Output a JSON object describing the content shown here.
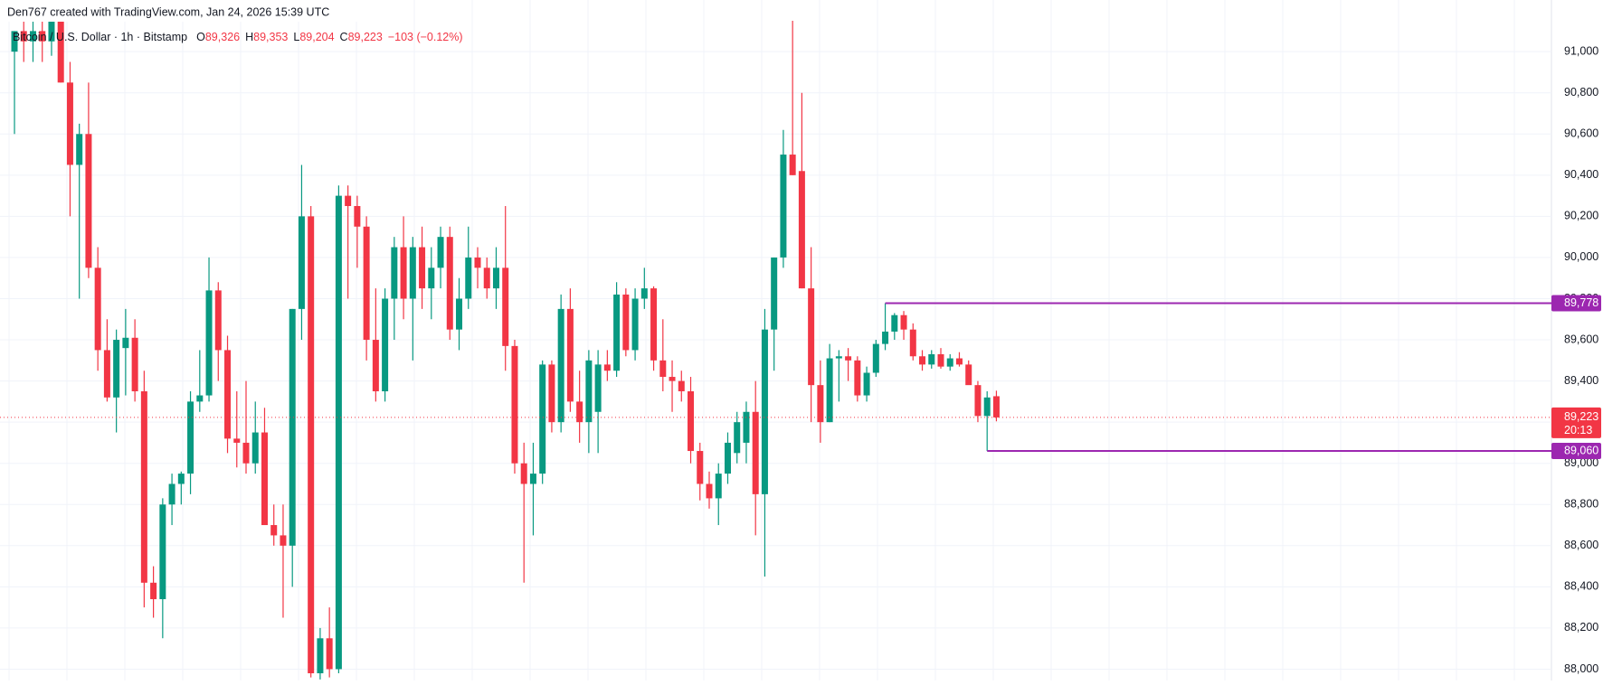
{
  "header": "Den767 created with TradingView.com, Jan 24, 2026 15:39 UTC",
  "legend": {
    "symbol": "Bitcoin / U.S. Dollar · 1h · Bitstamp",
    "items": [
      {
        "key": "O",
        "value": "89,326"
      },
      {
        "key": "H",
        "value": "89,353"
      },
      {
        "key": "L",
        "value": "89,204"
      },
      {
        "key": "C",
        "value": "89,223"
      }
    ],
    "change": "−103 (−0.12%)"
  },
  "chart_data": {
    "type": "candlestick",
    "up_color": "#089981",
    "down_color": "#f23645",
    "level_color": "#9c27b0",
    "grid": true,
    "ylim": [
      87945,
      91251
    ],
    "yticks": [
      {
        "value": 88000,
        "label": "88,000"
      },
      {
        "value": 88200,
        "label": "88,200"
      },
      {
        "value": 88400,
        "label": "88,400"
      },
      {
        "value": 88600,
        "label": "88,600"
      },
      {
        "value": 88800,
        "label": "88,800"
      },
      {
        "value": 89000,
        "label": "89,000"
      },
      {
        "value": 89200,
        "label": "89,200"
      },
      {
        "value": 89400,
        "label": "89,400"
      },
      {
        "value": 89600,
        "label": "89,600"
      },
      {
        "value": 89800,
        "label": "89,800"
      },
      {
        "value": 90000,
        "label": "90,000"
      },
      {
        "value": 90200,
        "label": "90,200"
      },
      {
        "value": 90400,
        "label": "90,400"
      },
      {
        "value": 90600,
        "label": "90,600"
      },
      {
        "value": 90800,
        "label": "90,800"
      },
      {
        "value": 91000,
        "label": "91,000"
      }
    ],
    "open": [
      91000,
      91100,
      91050,
      91100,
      91050,
      91150,
      90850,
      90450,
      90600,
      89950,
      89550,
      89320,
      89560,
      89610,
      89350,
      88420,
      88340,
      88800,
      88900,
      88950,
      89300,
      89330,
      89840,
      89550,
      89120,
      89100,
      89000,
      89150,
      88700,
      88650,
      88600,
      89750,
      90200,
      87980,
      88150,
      88000,
      90300,
      90250,
      90150,
      89600,
      89350,
      89800,
      90050,
      89800,
      90050,
      89850,
      89950,
      90100,
      89650,
      89800,
      90000,
      89950,
      89850,
      89950,
      89570,
      89000,
      88900,
      88950,
      89480,
      89200,
      89750,
      89300,
      89200,
      89250,
      89480,
      89450,
      89820,
      89550,
      89800,
      89850,
      89500,
      89420,
      89400,
      89350,
      89060,
      88900,
      88830,
      88950,
      89050,
      89100,
      89250,
      88850,
      89650,
      90000,
      90500,
      90420,
      89850,
      89380,
      89200,
      89510,
      89520,
      89500,
      89330,
      89440,
      89580,
      89640,
      89720,
      89650,
      89520,
      89480,
      89530,
      89470,
      89510,
      89480,
      89380,
      89230,
      89326
    ],
    "high": [
      91100,
      91200,
      91150,
      91250,
      91200,
      91250,
      90950,
      90650,
      90850,
      90050,
      89700,
      89650,
      89750,
      89700,
      89450,
      88500,
      88830,
      88950,
      88960,
      89350,
      89550,
      90000,
      89880,
      89620,
      89350,
      89400,
      89300,
      89270,
      88800,
      88800,
      89750,
      90450,
      90250,
      88200,
      88300,
      90350,
      90350,
      90300,
      90200,
      89850,
      89850,
      90100,
      90200,
      90100,
      90150,
      90050,
      90150,
      90150,
      89900,
      90150,
      90050,
      90000,
      90050,
      90250,
      89600,
      89100,
      89100,
      89500,
      89500,
      89820,
      89850,
      89450,
      89550,
      89550,
      89550,
      89880,
      89850,
      89850,
      89950,
      89860,
      89700,
      89500,
      89450,
      89420,
      89100,
      88960,
      89000,
      89150,
      89250,
      89300,
      89400,
      89750,
      90000,
      90620,
      91150,
      90800,
      90050,
      89500,
      89580,
      89550,
      89560,
      89520,
      89470,
      89600,
      89778,
      89730,
      89740,
      89680,
      89550,
      89550,
      89560,
      89530,
      89540,
      89500,
      89400,
      89350,
      89353
    ],
    "low": [
      90600,
      90950,
      90950,
      90950,
      90980,
      90850,
      90200,
      89800,
      89900,
      89450,
      89300,
      89150,
      89330,
      89300,
      88300,
      88250,
      88150,
      88700,
      88800,
      88850,
      89250,
      89300,
      89400,
      89050,
      88980,
      88950,
      88950,
      88700,
      88600,
      88250,
      88400,
      89600,
      87960,
      87950,
      87960,
      87980,
      89800,
      89950,
      89500,
      89300,
      89300,
      89600,
      89700,
      89500,
      89750,
      89700,
      89850,
      89600,
      89550,
      89750,
      89850,
      89800,
      89750,
      89450,
      88950,
      88420,
      88650,
      88900,
      89150,
      89150,
      89250,
      89100,
      89050,
      89050,
      89400,
      89420,
      89520,
      89500,
      89750,
      89450,
      89350,
      89250,
      89300,
      89000,
      88820,
      88780,
      88700,
      88900,
      89000,
      89000,
      88650,
      88450,
      89450,
      89950,
      90400,
      89850,
      89200,
      89100,
      89200,
      89300,
      89400,
      89300,
      89300,
      89420,
      89550,
      89600,
      89600,
      89500,
      89450,
      89460,
      89460,
      89450,
      89470,
      89400,
      89200,
      89060,
      89204
    ],
    "close": [
      91100,
      91050,
      91100,
      91050,
      91150,
      90850,
      90450,
      90600,
      89950,
      89550,
      89320,
      89600,
      89610,
      89350,
      88420,
      88340,
      88800,
      88900,
      88950,
      89300,
      89330,
      89840,
      89550,
      89120,
      89100,
      89000,
      89150,
      88700,
      88650,
      88600,
      89750,
      90200,
      87980,
      88150,
      88000,
      90300,
      90250,
      90150,
      89600,
      89350,
      89800,
      90050,
      89800,
      90050,
      89850,
      89950,
      90100,
      89650,
      89800,
      90000,
      89950,
      89850,
      89950,
      89570,
      89000,
      88900,
      88950,
      89480,
      89200,
      89750,
      89300,
      89200,
      89500,
      89480,
      89450,
      89820,
      89550,
      89800,
      89850,
      89500,
      89420,
      89400,
      89350,
      89060,
      88900,
      88830,
      88950,
      89100,
      89200,
      89250,
      88850,
      89650,
      90000,
      90500,
      90400,
      89850,
      89380,
      89200,
      89510,
      89520,
      89500,
      89330,
      89440,
      89580,
      89640,
      89720,
      89650,
      89520,
      89480,
      89530,
      89470,
      89510,
      89480,
      89380,
      89230,
      89320,
      89223
    ],
    "levels": [
      {
        "value": 89778,
        "label": "89,778"
      },
      {
        "value": 89060,
        "label": "89,060"
      }
    ],
    "last_price": {
      "value": 89223,
      "label": "89,223",
      "countdown": "20:13"
    }
  }
}
